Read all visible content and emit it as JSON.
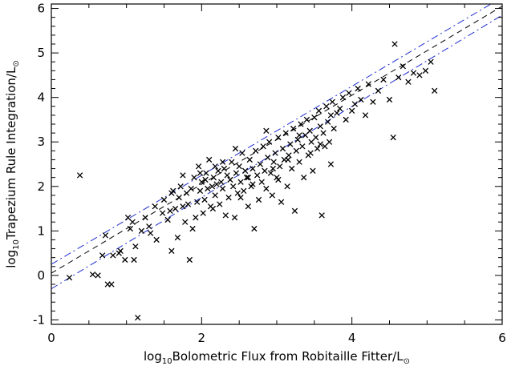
{
  "chart_data": {
    "type": "scatter",
    "title": "",
    "xlabel": {
      "prefix": "log",
      "sub": "10",
      "main": "Bolometric Flux from Robitaille Fitter/L",
      "sun": "⊙"
    },
    "ylabel": {
      "prefix": "log",
      "sub": "10",
      "main": "Trapezium Rule Integration/L",
      "sun": "⊙"
    },
    "xlim": [
      0,
      6
    ],
    "ylim": [
      -1.1,
      6.1
    ],
    "x_ticks": [
      0,
      2,
      4,
      6
    ],
    "y_ticks": [
      -1,
      0,
      1,
      2,
      3,
      4,
      5,
      6
    ],
    "grid": false,
    "colors": {
      "points": "#000000",
      "fit_line": "#000000",
      "band_lines": "#1f2fd0"
    },
    "lines": [
      {
        "style": "dashed",
        "color": "#000000",
        "x": [
          0,
          6
        ],
        "y": [
          0.05,
          6.05
        ]
      },
      {
        "style": "dash-dot",
        "color": "#1f2fd0",
        "x": [
          0,
          6
        ],
        "y": [
          0.25,
          6.25
        ]
      },
      {
        "style": "dash-dot",
        "color": "#1f2fd0",
        "x": [
          0,
          6
        ],
        "y": [
          -0.3,
          5.85
        ]
      }
    ],
    "points": [
      [
        0.38,
        2.25
      ],
      [
        0.24,
        -0.05
      ],
      [
        0.55,
        0.02
      ],
      [
        0.62,
        0.0
      ],
      [
        0.68,
        0.45
      ],
      [
        0.72,
        0.9
      ],
      [
        0.75,
        -0.2
      ],
      [
        0.8,
        -0.2
      ],
      [
        0.82,
        0.45
      ],
      [
        0.92,
        0.55
      ],
      [
        0.98,
        0.35
      ],
      [
        1.02,
        1.3
      ],
      [
        1.05,
        1.05
      ],
      [
        1.08,
        1.2
      ],
      [
        1.1,
        0.35
      ],
      [
        1.12,
        0.65
      ],
      [
        1.15,
        -0.95
      ],
      [
        1.2,
        1.0
      ],
      [
        1.25,
        1.3
      ],
      [
        1.3,
        1.1
      ],
      [
        1.38,
        1.55
      ],
      [
        1.4,
        0.8
      ],
      [
        1.48,
        1.4
      ],
      [
        1.5,
        1.7
      ],
      [
        1.55,
        1.25
      ],
      [
        1.58,
        1.45
      ],
      [
        1.6,
        0.55
      ],
      [
        1.62,
        1.9
      ],
      [
        1.65,
        1.5
      ],
      [
        1.68,
        0.85
      ],
      [
        1.7,
        1.75
      ],
      [
        1.72,
        2.0
      ],
      [
        1.75,
        1.55
      ],
      [
        1.78,
        1.2
      ],
      [
        1.8,
        1.85
      ],
      [
        1.82,
        1.6
      ],
      [
        1.84,
        0.35
      ],
      [
        1.86,
        1.95
      ],
      [
        1.88,
        1.05
      ],
      [
        1.9,
        2.2
      ],
      [
        1.92,
        1.3
      ],
      [
        1.94,
        1.65
      ],
      [
        1.96,
        2.45
      ],
      [
        1.98,
        1.9
      ],
      [
        2.0,
        2.1
      ],
      [
        2.02,
        1.4
      ],
      [
        2.04,
        1.7
      ],
      [
        2.06,
        2.3
      ],
      [
        2.08,
        1.95
      ],
      [
        2.1,
        2.6
      ],
      [
        2.12,
        1.55
      ],
      [
        2.14,
        2.0
      ],
      [
        2.16,
        2.2
      ],
      [
        2.18,
        1.8
      ],
      [
        2.2,
        2.05
      ],
      [
        2.22,
        2.35
      ],
      [
        2.24,
        1.6
      ],
      [
        2.26,
        2.1
      ],
      [
        2.28,
        1.95
      ],
      [
        2.3,
        2.4
      ],
      [
        2.32,
        1.35
      ],
      [
        2.34,
        2.25
      ],
      [
        2.36,
        1.75
      ],
      [
        2.38,
        2.15
      ],
      [
        2.4,
        2.55
      ],
      [
        2.42,
        2.0
      ],
      [
        2.44,
        1.3
      ],
      [
        2.46,
        2.3
      ],
      [
        2.48,
        1.85
      ],
      [
        2.5,
        2.45
      ],
      [
        2.52,
        2.1
      ],
      [
        2.54,
        2.75
      ],
      [
        2.56,
        1.9
      ],
      [
        2.58,
        2.35
      ],
      [
        2.6,
        2.2
      ],
      [
        2.62,
        1.55
      ],
      [
        2.64,
        2.6
      ],
      [
        2.66,
        2.0
      ],
      [
        2.68,
        2.4
      ],
      [
        2.7,
        1.05
      ],
      [
        2.72,
        2.8
      ],
      [
        2.74,
        2.25
      ],
      [
        2.76,
        1.7
      ],
      [
        2.78,
        2.5
      ],
      [
        2.8,
        2.1
      ],
      [
        2.82,
        2.9
      ],
      [
        2.84,
        2.35
      ],
      [
        2.86,
        1.95
      ],
      [
        2.88,
        2.65
      ],
      [
        2.9,
        3.0
      ],
      [
        2.92,
        2.3
      ],
      [
        2.94,
        1.8
      ],
      [
        2.96,
        2.55
      ],
      [
        2.98,
        2.75
      ],
      [
        3.0,
        2.2
      ],
      [
        3.02,
        3.1
      ],
      [
        3.04,
        2.45
      ],
      [
        3.06,
        1.65
      ],
      [
        3.08,
        2.85
      ],
      [
        3.1,
        2.6
      ],
      [
        3.12,
        3.2
      ],
      [
        3.14,
        2.0
      ],
      [
        3.16,
        2.7
      ],
      [
        3.18,
        2.95
      ],
      [
        3.2,
        2.4
      ],
      [
        3.22,
        3.3
      ],
      [
        3.24,
        1.45
      ],
      [
        3.26,
        2.8
      ],
      [
        3.28,
        3.05
      ],
      [
        3.3,
        2.55
      ],
      [
        3.32,
        3.4
      ],
      [
        3.34,
        2.9
      ],
      [
        3.36,
        2.2
      ],
      [
        3.38,
        3.15
      ],
      [
        3.4,
        3.5
      ],
      [
        3.42,
        2.7
      ],
      [
        3.44,
        3.25
      ],
      [
        3.46,
        3.0
      ],
      [
        3.48,
        2.35
      ],
      [
        3.5,
        3.55
      ],
      [
        3.52,
        3.1
      ],
      [
        3.54,
        2.85
      ],
      [
        3.56,
        3.7
      ],
      [
        3.58,
        3.35
      ],
      [
        3.6,
        1.35
      ],
      [
        3.62,
        3.2
      ],
      [
        3.64,
        2.9
      ],
      [
        3.66,
        3.8
      ],
      [
        3.68,
        3.45
      ],
      [
        3.7,
        3.0
      ],
      [
        3.72,
        3.6
      ],
      [
        3.74,
        3.9
      ],
      [
        3.76,
        3.3
      ],
      [
        3.8,
        3.65
      ],
      [
        3.84,
        3.75
      ],
      [
        3.88,
        4.0
      ],
      [
        3.92,
        3.5
      ],
      [
        3.96,
        4.1
      ],
      [
        4.0,
        3.7
      ],
      [
        4.04,
        3.85
      ],
      [
        4.08,
        4.2
      ],
      [
        4.12,
        3.95
      ],
      [
        4.18,
        3.6
      ],
      [
        4.22,
        4.3
      ],
      [
        4.28,
        3.9
      ],
      [
        4.35,
        4.15
      ],
      [
        4.42,
        4.4
      ],
      [
        4.5,
        3.95
      ],
      [
        4.55,
        3.1
      ],
      [
        4.57,
        5.2
      ],
      [
        4.62,
        4.45
      ],
      [
        4.68,
        4.7
      ],
      [
        4.75,
        4.35
      ],
      [
        4.82,
        4.55
      ],
      [
        4.9,
        4.5
      ],
      [
        4.98,
        4.6
      ],
      [
        5.1,
        4.15
      ],
      [
        5.05,
        4.8
      ],
      [
        1.98,
        2.3
      ],
      [
        2.15,
        1.5
      ],
      [
        2.28,
        2.55
      ],
      [
        2.52,
        1.75
      ],
      [
        2.68,
        2.05
      ],
      [
        2.95,
        2.4
      ],
      [
        3.15,
        2.6
      ],
      [
        3.45,
        2.75
      ],
      [
        3.72,
        2.5
      ],
      [
        1.75,
        2.25
      ],
      [
        1.6,
        1.85
      ],
      [
        2.05,
        2.15
      ],
      [
        2.45,
        2.85
      ],
      [
        2.86,
        3.25
      ],
      [
        3.3,
        3.15
      ],
      [
        3.58,
        2.95
      ],
      [
        0.9,
        0.5
      ],
      [
        1.32,
        0.95
      ],
      [
        2.62,
        2.2
      ],
      [
        2.18,
        2.45
      ],
      [
        3.02,
        2.15
      ]
    ]
  }
}
